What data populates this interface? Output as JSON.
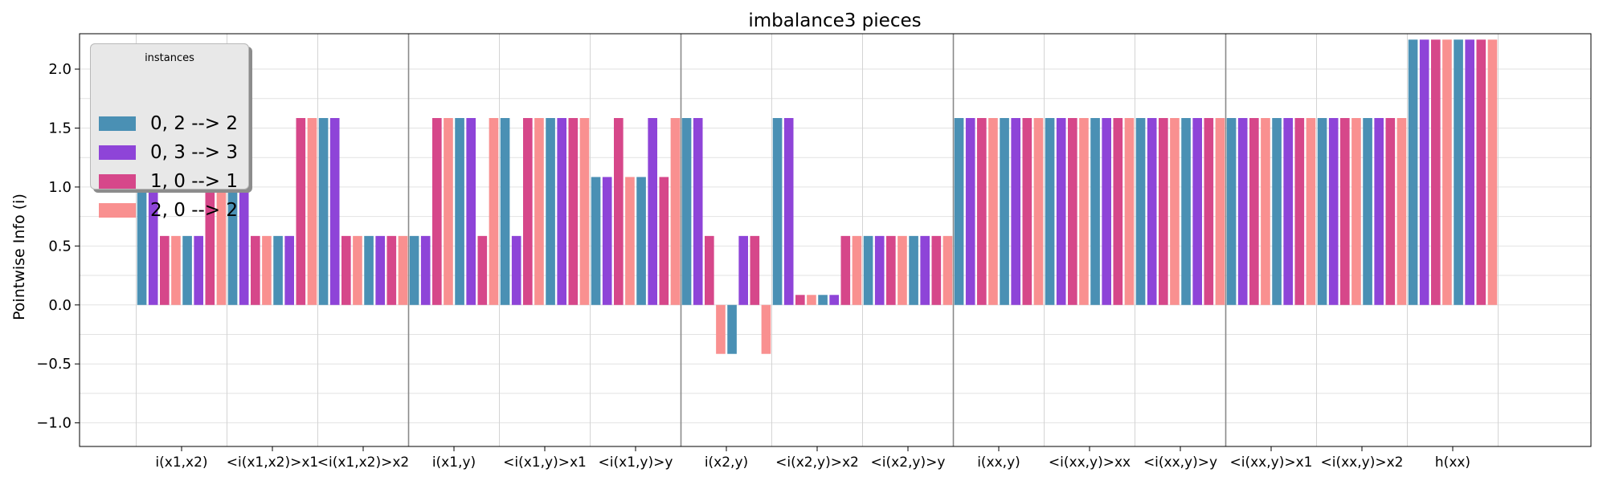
{
  "chart_data": {
    "type": "bar",
    "title": "imbalance3 pieces",
    "xlabel": "",
    "ylabel": "Pointwise Info (i)",
    "ylim": [
      -1.2,
      2.3
    ],
    "yticks": [
      -1.0,
      -0.5,
      0.0,
      0.5,
      1.0,
      1.5,
      2.0
    ],
    "ytick_labels": [
      "−1.0",
      "−0.5",
      "0.0",
      "0.5",
      "1.0",
      "1.5",
      "2.0"
    ],
    "grid": true,
    "legend": {
      "title": "instances",
      "position": "top-left"
    },
    "categories": [
      "i(x1,x2)",
      "<i(x1,x2)>x1",
      "<i(x1,x2)>x2",
      "i(x1,y)",
      "<i(x1,y)>x1",
      "<i(x1,y)>y",
      "i(x2,y)",
      "<i(x2,y)>x2",
      "<i(x2,y)>y",
      "i(xx,y)",
      "<i(xx,y)>xx",
      "<i(xx,y)>y",
      "<i(xx,y)>x1",
      "<i(xx,y)>x2",
      "h(xx)"
    ],
    "groups": [
      3,
      3,
      3,
      3
    ],
    "series": [
      {
        "name": "0, 2 --> 2",
        "color": "#4a90b4",
        "values": [
          1.585,
          1.585,
          1.585,
          0.585,
          1.585,
          1.085,
          1.585,
          1.585,
          0.585,
          1.585,
          1.585,
          1.585,
          1.585,
          1.585,
          2.25
        ]
      },
      {
        "name": "0, 3 --> 3",
        "color": "#8e44d8",
        "values": [
          1.585,
          1.585,
          1.585,
          0.585,
          0.585,
          1.085,
          1.585,
          1.585,
          0.585,
          1.585,
          1.585,
          1.585,
          1.585,
          1.585,
          2.25
        ]
      },
      {
        "name": "1, 0 --> 1",
        "color": "#d6478a",
        "values": [
          0.585,
          0.585,
          0.585,
          1.585,
          1.585,
          1.585,
          0.585,
          0.085,
          0.585,
          1.585,
          1.585,
          1.585,
          1.585,
          1.585,
          2.25
        ]
      },
      {
        "name": "2, 0 --> 2",
        "color": "#f99090",
        "values": [
          0.585,
          0.585,
          0.585,
          1.585,
          1.585,
          1.085,
          -0.415,
          0.085,
          0.585,
          1.585,
          1.585,
          1.585,
          1.585,
          1.585,
          2.25
        ]
      },
      {
        "name": "",
        "color": "#4a90b4",
        "values": [
          0.585,
          0.585,
          0.585,
          1.585,
          1.585,
          1.085,
          -0.415,
          0.085,
          0.585,
          1.585,
          1.585,
          1.585,
          1.585,
          1.585,
          2.25
        ]
      },
      {
        "name": "",
        "color": "#8e44d8",
        "values": [
          0.585,
          0.585,
          0.585,
          1.585,
          1.585,
          1.585,
          0.585,
          0.085,
          0.585,
          1.585,
          1.585,
          1.585,
          1.585,
          1.585,
          2.25
        ]
      },
      {
        "name": "",
        "color": "#d6478a",
        "values": [
          1.585,
          1.585,
          0.585,
          0.585,
          1.585,
          1.085,
          0.585,
          0.585,
          0.585,
          1.585,
          1.585,
          1.585,
          1.585,
          1.585,
          2.25
        ]
      },
      {
        "name": "",
        "color": "#f99090",
        "values": [
          1.585,
          1.585,
          0.585,
          1.585,
          1.585,
          1.585,
          -0.415,
          0.585,
          0.585,
          1.585,
          1.585,
          1.585,
          1.585,
          1.585,
          2.25
        ]
      }
    ]
  }
}
